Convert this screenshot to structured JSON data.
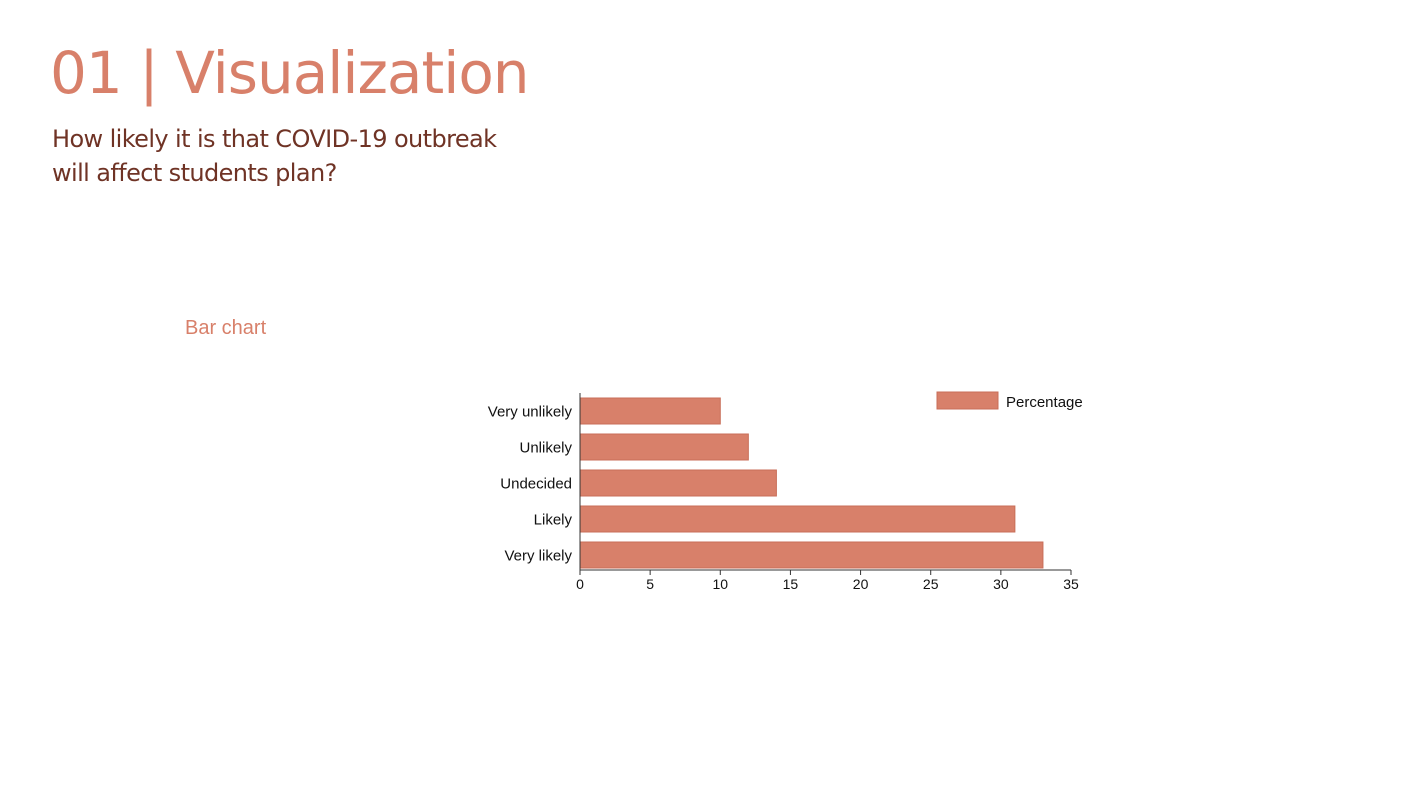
{
  "slide": {
    "title": "01 | Visualization",
    "subtitle": "How likely it is that COVID-19 outbreak will affect students plan?",
    "section_label": "Bar chart"
  },
  "chart_data": {
    "type": "bar",
    "orientation": "horizontal",
    "categories": [
      "Very unlikely",
      "Unlikely",
      "Undecided",
      "Likely",
      "Very likely"
    ],
    "series": [
      {
        "name": "Percentage",
        "values": [
          10,
          12,
          14,
          31,
          33
        ],
        "color": "#d8806a"
      }
    ],
    "xlim": [
      0,
      35
    ],
    "xticks": [
      0,
      5,
      10,
      15,
      20,
      25,
      30,
      35
    ],
    "grid": false,
    "legend": "top-right",
    "bar_color": "#d8806a",
    "bar_stroke": "#c86e58",
    "axis_color": "#333333"
  }
}
